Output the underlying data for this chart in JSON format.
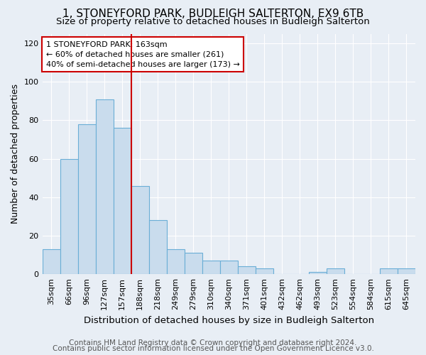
{
  "title": "1, STONEYFORD PARK, BUDLEIGH SALTERTON, EX9 6TB",
  "subtitle": "Size of property relative to detached houses in Budleigh Salterton",
  "xlabel": "Distribution of detached houses by size in Budleigh Salterton",
  "ylabel": "Number of detached properties",
  "footnote1": "Contains HM Land Registry data © Crown copyright and database right 2024.",
  "footnote2": "Contains public sector information licensed under the Open Government Licence v3.0.",
  "bar_labels": [
    "35sqm",
    "66sqm",
    "96sqm",
    "127sqm",
    "157sqm",
    "188sqm",
    "218sqm",
    "249sqm",
    "279sqm",
    "310sqm",
    "340sqm",
    "371sqm",
    "401sqm",
    "432sqm",
    "462sqm",
    "493sqm",
    "523sqm",
    "554sqm",
    "584sqm",
    "615sqm",
    "645sqm"
  ],
  "bar_values": [
    13,
    60,
    78,
    91,
    76,
    46,
    28,
    13,
    11,
    7,
    7,
    4,
    3,
    0,
    0,
    1,
    3,
    0,
    0,
    3,
    3
  ],
  "bar_color": "#c9dced",
  "bar_edgecolor": "#6aaed6",
  "background_color": "#e8eef5",
  "plot_bg_color": "#e8eef5",
  "red_line_x": 4.5,
  "annotation_text": "1 STONEYFORD PARK: 163sqm\n← 60% of detached houses are smaller (261)\n40% of semi-detached houses are larger (173) →",
  "annotation_box_facecolor": "#ffffff",
  "annotation_box_edgecolor": "#cc0000",
  "ylim": [
    0,
    125
  ],
  "yticks": [
    0,
    20,
    40,
    60,
    80,
    100,
    120
  ],
  "title_fontsize": 11,
  "subtitle_fontsize": 9.5,
  "xlabel_fontsize": 9.5,
  "ylabel_fontsize": 9,
  "tick_fontsize": 8,
  "annot_fontsize": 8,
  "footnote_fontsize": 7.5
}
